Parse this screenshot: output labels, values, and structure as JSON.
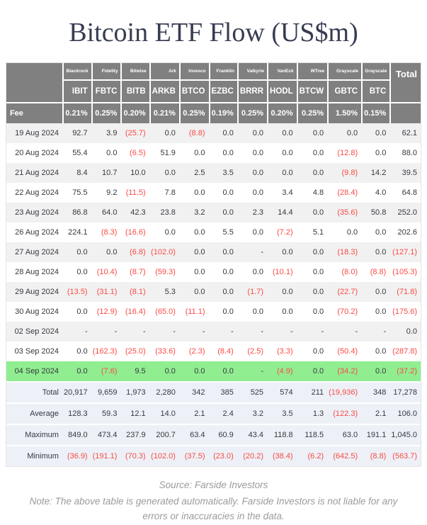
{
  "title": "Bitcoin ETF Flow (US$m)",
  "colors": {
    "header_bg": "#808080",
    "header_text": "#ffffff",
    "negative_value": "#fb4a44",
    "highlight_row": "#90ee90",
    "summary_row_bg": "#edf1f7",
    "stripe_row_bg": "#f1f1f1",
    "title_text": "#373c52"
  },
  "chart_data": {
    "type": "table",
    "title": "Bitcoin ETF Flow (US$m)",
    "total_label": "Total",
    "fee_label": "Fee",
    "issuers": [
      "Blackrock",
      "Fidelity",
      "Bitwise",
      "Ark",
      "Invesco",
      "Franklin",
      "Valkyrie",
      "VanEck",
      "WTree",
      "Grayscale",
      "Grayscale"
    ],
    "tickers": [
      "IBIT",
      "FBTC",
      "BITB",
      "ARKB",
      "BTCO",
      "EZBC",
      "BRRR",
      "HODL",
      "BTCW",
      "GBTC",
      "BTC"
    ],
    "fees": [
      "0.21%",
      "0.25%",
      "0.20%",
      "0.21%",
      "0.25%",
      "0.19%",
      "0.25%",
      "0.20%",
      "0.25%",
      "1.50%",
      "0.15%"
    ],
    "rows": [
      {
        "date": "19 Aug 2024",
        "values": [
          "92.7",
          "3.9",
          "(25.7)",
          "0.0",
          "(8.8)",
          "0.0",
          "0.0",
          "0.0",
          "0.0",
          "0.0",
          "0.0"
        ],
        "total": "62.1",
        "highlight": false
      },
      {
        "date": "20 Aug 2024",
        "values": [
          "55.4",
          "0.0",
          "(6.5)",
          "51.9",
          "0.0",
          "0.0",
          "0.0",
          "0.0",
          "0.0",
          "(12.8)",
          "0.0"
        ],
        "total": "88.0",
        "highlight": false
      },
      {
        "date": "21 Aug 2024",
        "values": [
          "8.4",
          "10.7",
          "10.0",
          "0.0",
          "2.5",
          "3.5",
          "0.0",
          "0.0",
          "0.0",
          "(9.8)",
          "14.2"
        ],
        "total": "39.5",
        "highlight": false
      },
      {
        "date": "22 Aug 2024",
        "values": [
          "75.5",
          "9.2",
          "(11.5)",
          "7.8",
          "0.0",
          "0.0",
          "0.0",
          "3.4",
          "4.8",
          "(28.4)",
          "4.0"
        ],
        "total": "64.8",
        "highlight": false
      },
      {
        "date": "23 Aug 2024",
        "values": [
          "86.8",
          "64.0",
          "42.3",
          "23.8",
          "3.2",
          "0.0",
          "2.3",
          "14.4",
          "0.0",
          "(35.6)",
          "50.8"
        ],
        "total": "252.0",
        "highlight": false
      },
      {
        "date": "26 Aug 2024",
        "values": [
          "224.1",
          "(8.3)",
          "(16.6)",
          "0.0",
          "0.0",
          "5.5",
          "0.0",
          "(7.2)",
          "5.1",
          "0.0",
          "0.0"
        ],
        "total": "202.6",
        "highlight": false
      },
      {
        "date": "27 Aug 2024",
        "values": [
          "0.0",
          "0.0",
          "(6.8)",
          "(102.0)",
          "0.0",
          "0.0",
          "-",
          "0.0",
          "0.0",
          "(18.3)",
          "0.0"
        ],
        "total": "(127.1)",
        "highlight": false
      },
      {
        "date": "28 Aug 2024",
        "values": [
          "0.0",
          "(10.4)",
          "(8.7)",
          "(59.3)",
          "0.0",
          "0.0",
          "0.0",
          "(10.1)",
          "0.0",
          "(8.0)",
          "(8.8)"
        ],
        "total": "(105.3)",
        "highlight": false
      },
      {
        "date": "29 Aug 2024",
        "values": [
          "(13.5)",
          "(31.1)",
          "(8.1)",
          "5.3",
          "0.0",
          "0.0",
          "(1.7)",
          "0.0",
          "0.0",
          "(22.7)",
          "0.0"
        ],
        "total": "(71.8)",
        "highlight": false
      },
      {
        "date": "30 Aug 2024",
        "values": [
          "0.0",
          "(12.9)",
          "(16.4)",
          "(65.0)",
          "(11.1)",
          "0.0",
          "0.0",
          "0.0",
          "0.0",
          "(70.2)",
          "0.0"
        ],
        "total": "(175.6)",
        "highlight": false
      },
      {
        "date": "02 Sep 2024",
        "values": [
          "-",
          "-",
          "-",
          "-",
          "-",
          "-",
          "-",
          "-",
          "-",
          "-",
          "-"
        ],
        "total": "0.0",
        "highlight": false
      },
      {
        "date": "03 Sep 2024",
        "values": [
          "0.0",
          "(162.3)",
          "(25.0)",
          "(33.6)",
          "(2.3)",
          "(8.4)",
          "(2.5)",
          "(3.3)",
          "0.0",
          "(50.4)",
          "0.0"
        ],
        "total": "(287.8)",
        "highlight": false
      },
      {
        "date": "04 Sep 2024",
        "values": [
          "0.0",
          "(7.6)",
          "9.5",
          "0.0",
          "0.0",
          "0.0",
          "-",
          "(4.9)",
          "0.0",
          "(34.2)",
          "0.0"
        ],
        "total": "(37.2)",
        "highlight": true
      }
    ],
    "summary": [
      {
        "label": "Total",
        "values": [
          "20,917",
          "9,659",
          "1,973",
          "2,280",
          "342",
          "385",
          "525",
          "574",
          "211",
          "(19,936)",
          "348"
        ],
        "total": "17,278"
      },
      {
        "label": "Average",
        "values": [
          "128.3",
          "59.3",
          "12.1",
          "14.0",
          "2.1",
          "2.4",
          "3.2",
          "3.5",
          "1.3",
          "(122.3)",
          "2.1"
        ],
        "total": "106.0"
      },
      {
        "label": "Maximum",
        "values": [
          "849.0",
          "473.4",
          "237.9",
          "200.7",
          "63.4",
          "60.9",
          "43.4",
          "118.8",
          "118.5",
          "63.0",
          "191.1"
        ],
        "total": "1,045.0"
      },
      {
        "label": "Minimum",
        "values": [
          "(36.9)",
          "(191.1)",
          "(70.3)",
          "(102.0)",
          "(37.5)",
          "(23.0)",
          "(20.2)",
          "(38.4)",
          "(6.2)",
          "(642.5)",
          "(8.8)"
        ],
        "total": "(563.7)"
      }
    ]
  },
  "footer": {
    "source_line": "Source: Farside Investors",
    "note_line": "Note: The above table is generated automatically. Farside Investors is not liable for any errors or inaccuracies in the data."
  }
}
